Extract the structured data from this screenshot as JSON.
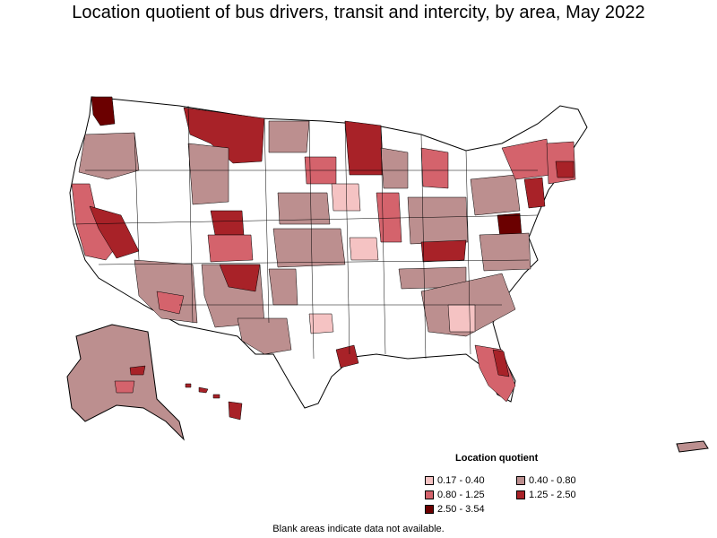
{
  "title": "Location quotient of bus drivers, transit and intercity, by area, May 2022",
  "legend": {
    "title": "Location quotient",
    "items": [
      {
        "label": "0.17 - 0.40",
        "color": "#f5c3c3"
      },
      {
        "label": "0.40 - 0.80",
        "color": "#bc8f8f"
      },
      {
        "label": "0.80 - 1.25",
        "color": "#d4636c"
      },
      {
        "label": "1.25 - 2.50",
        "color": "#a82228"
      },
      {
        "label": "2.50 - 3.54",
        "color": "#6b0000"
      }
    ]
  },
  "footnote": "Blank areas indicate data not available.",
  "colors": {
    "no_data": "#ffffff",
    "border": "#000000",
    "c1": "#f5c3c3",
    "c2": "#bc8f8f",
    "c3": "#d4636c",
    "c4": "#a82228",
    "c5": "#6b0000"
  }
}
